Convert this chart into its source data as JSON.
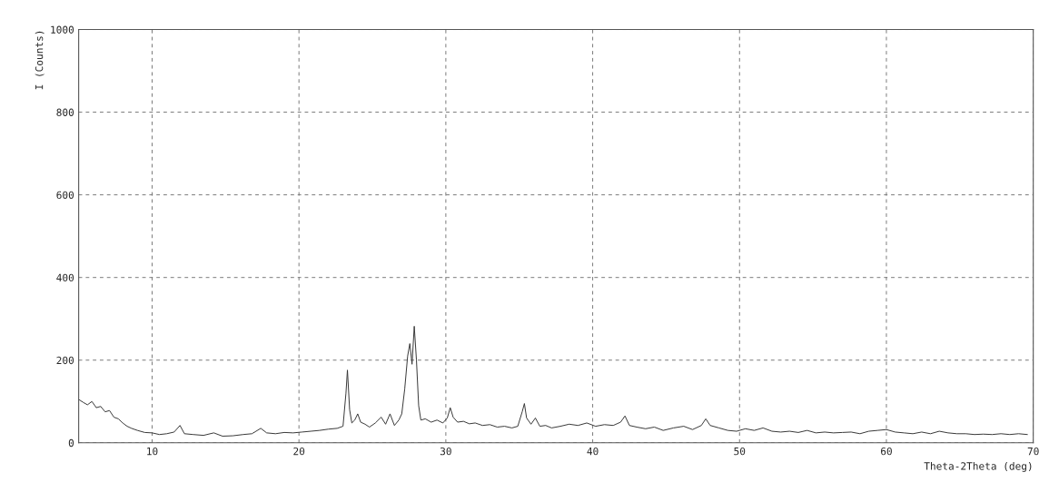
{
  "chart_data": {
    "type": "line",
    "xlabel": "Theta-2Theta (deg)",
    "ylabel": "I (Counts)",
    "xlim": [
      5,
      70
    ],
    "xticks": [
      10,
      20,
      30,
      40,
      50,
      60,
      70
    ],
    "ylim": [
      0,
      1000
    ],
    "yticks": [
      0,
      200,
      400,
      600,
      800,
      1000
    ],
    "grid": true,
    "line_style": "solid",
    "marker": "none",
    "series": [
      {
        "color": "#333333",
        "x": [
          5.0,
          5.3,
          5.6,
          5.9,
          6.2,
          6.5,
          6.8,
          7.1,
          7.4,
          7.7,
          8.0,
          8.3,
          8.6,
          9.0,
          9.5,
          10.0,
          10.5,
          11.0,
          11.5,
          11.9,
          12.2,
          12.8,
          13.5,
          14.2,
          14.8,
          15.5,
          16.2,
          16.8,
          17.4,
          17.8,
          18.4,
          19.0,
          19.6,
          20.2,
          20.8,
          21.4,
          22.0,
          22.6,
          23.0,
          23.2,
          23.3,
          23.45,
          23.6,
          23.8,
          24.0,
          24.2,
          24.5,
          24.8,
          25.2,
          25.6,
          25.9,
          26.2,
          26.5,
          26.8,
          27.0,
          27.2,
          27.4,
          27.55,
          27.7,
          27.85,
          28.0,
          28.15,
          28.3,
          28.6,
          29.0,
          29.4,
          29.8,
          30.1,
          30.3,
          30.5,
          30.8,
          31.2,
          31.6,
          32.0,
          32.5,
          33.0,
          33.5,
          34.0,
          34.5,
          34.9,
          35.2,
          35.35,
          35.5,
          35.8,
          36.1,
          36.4,
          36.8,
          37.2,
          37.8,
          38.4,
          39.0,
          39.6,
          40.2,
          40.8,
          41.4,
          41.9,
          42.2,
          42.5,
          43.0,
          43.6,
          44.2,
          44.8,
          45.5,
          46.2,
          46.8,
          47.4,
          47.7,
          48.0,
          48.6,
          49.2,
          49.8,
          50.4,
          51.0,
          51.6,
          52.2,
          52.8,
          53.4,
          54.0,
          54.6,
          55.2,
          55.8,
          56.4,
          57.0,
          57.6,
          58.2,
          58.8,
          59.4,
          60.0,
          60.6,
          61.2,
          61.8,
          62.4,
          63.0,
          63.6,
          64.2,
          64.8,
          65.4,
          66.0,
          66.6,
          67.2,
          67.8,
          68.4,
          69.0,
          69.6
        ],
        "values": [
          105,
          98,
          92,
          100,
          85,
          88,
          75,
          78,
          62,
          58,
          48,
          40,
          35,
          30,
          25,
          24,
          20,
          22,
          26,
          42,
          22,
          20,
          18,
          24,
          16,
          17,
          20,
          22,
          35,
          24,
          22,
          25,
          24,
          26,
          28,
          30,
          33,
          35,
          40,
          120,
          176,
          80,
          48,
          55,
          70,
          50,
          45,
          38,
          48,
          62,
          45,
          70,
          42,
          55,
          70,
          130,
          210,
          240,
          190,
          282,
          200,
          90,
          55,
          58,
          50,
          55,
          48,
          60,
          85,
          62,
          50,
          52,
          46,
          48,
          42,
          44,
          38,
          40,
          36,
          40,
          75,
          95,
          60,
          45,
          60,
          40,
          42,
          36,
          40,
          45,
          42,
          48,
          40,
          44,
          42,
          50,
          65,
          42,
          38,
          34,
          38,
          30,
          36,
          40,
          32,
          42,
          58,
          42,
          36,
          30,
          28,
          34,
          30,
          36,
          28,
          26,
          28,
          25,
          30,
          24,
          26,
          24,
          25,
          26,
          22,
          28,
          30,
          32,
          26,
          24,
          22,
          26,
          22,
          28,
          24,
          22,
          22,
          20,
          21,
          20,
          22,
          20,
          22,
          20
        ]
      }
    ]
  }
}
